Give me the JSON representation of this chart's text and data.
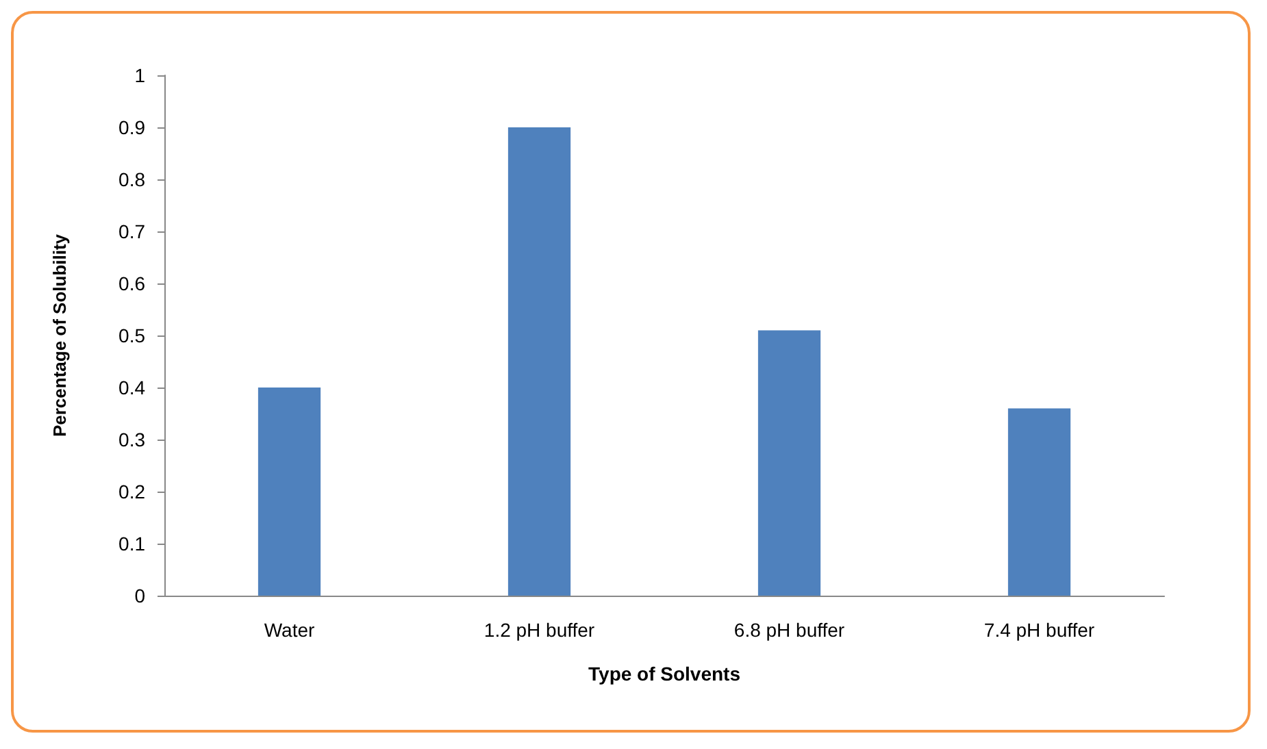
{
  "chart_data": {
    "type": "bar",
    "xlabel": "Type of Solvents",
    "ylabel": "Percentage of Solubility",
    "categories": [
      "Water",
      "1.2 pH buffer",
      "6.8 pH buffer",
      "7.4 pH buffer"
    ],
    "values": [
      0.4,
      0.9,
      0.51,
      0.36
    ],
    "color": "#4f81bd",
    "ylim": [
      0,
      1
    ],
    "yticks": [
      0,
      0.1,
      0.2,
      0.3,
      0.4,
      0.5,
      0.6,
      0.7,
      0.8,
      0.9,
      1
    ],
    "grid": false
  }
}
